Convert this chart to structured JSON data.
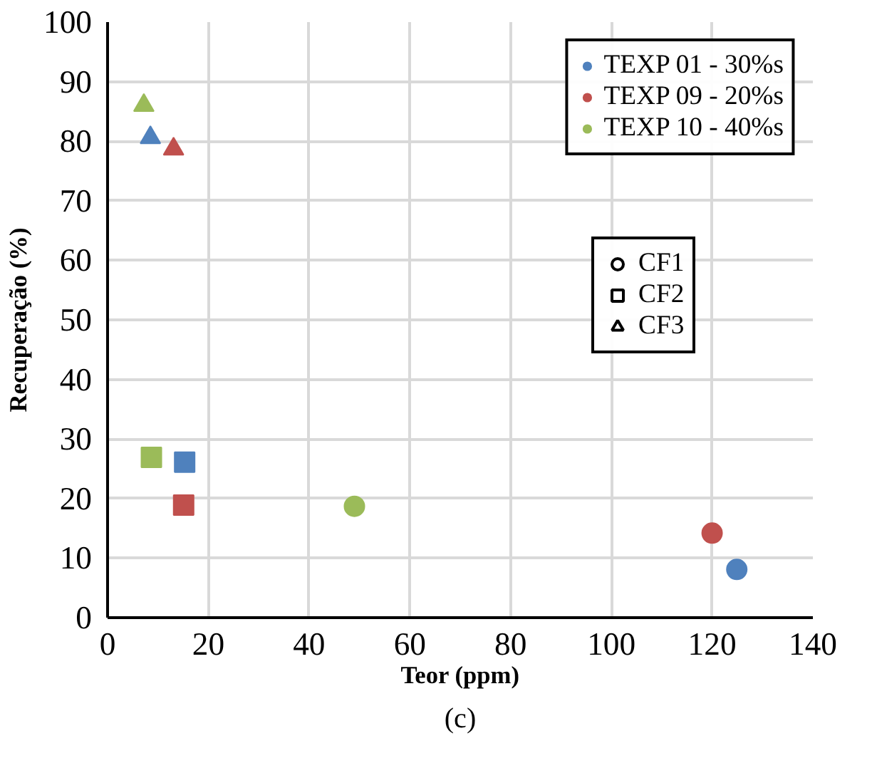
{
  "chart_data": {
    "type": "scatter",
    "xlabel": "Teor (ppm)",
    "ylabel": "Recuperação (%)",
    "xlim": [
      0,
      140
    ],
    "ylim": [
      0,
      100
    ],
    "xticks": [
      0,
      20,
      40,
      60,
      80,
      100,
      120,
      140
    ],
    "yticks": [
      0,
      10,
      20,
      30,
      40,
      50,
      60,
      70,
      80,
      90,
      100
    ],
    "grid": true,
    "legend": "top right",
    "series": [
      {
        "name": "TEXP 01 - 30%s",
        "color": "#4f81bd",
        "x": [
          124.9,
          15.3,
          8.5
        ],
        "values": [
          8.1,
          26.1,
          80.6
        ],
        "marker": [
          "circle",
          "square",
          "triangle"
        ]
      },
      {
        "name": "TEXP 09 - 20%s",
        "color": "#c0504d",
        "x": [
          120,
          15.1,
          13.1
        ],
        "values": [
          14.2,
          18.9,
          78.7
        ],
        "marker": [
          "circle",
          "square",
          "triangle"
        ]
      },
      {
        "name": "TEXP 10 - 40%s",
        "color": "#9bbb59",
        "x": [
          49,
          8.7,
          7.2
        ],
        "values": [
          18.7,
          26.9,
          86
        ],
        "marker": [
          "circle",
          "square",
          "triangle"
        ]
      },
      {
        "name": "CF1",
        "color": "#000000",
        "marker": "circle"
      },
      {
        "name": "CF2",
        "color": "#000000",
        "marker": "square"
      },
      {
        "name": "CF3",
        "color": "#000000",
        "marker": "triangle"
      }
    ],
    "annotations": [
      "(c)"
    ]
  }
}
